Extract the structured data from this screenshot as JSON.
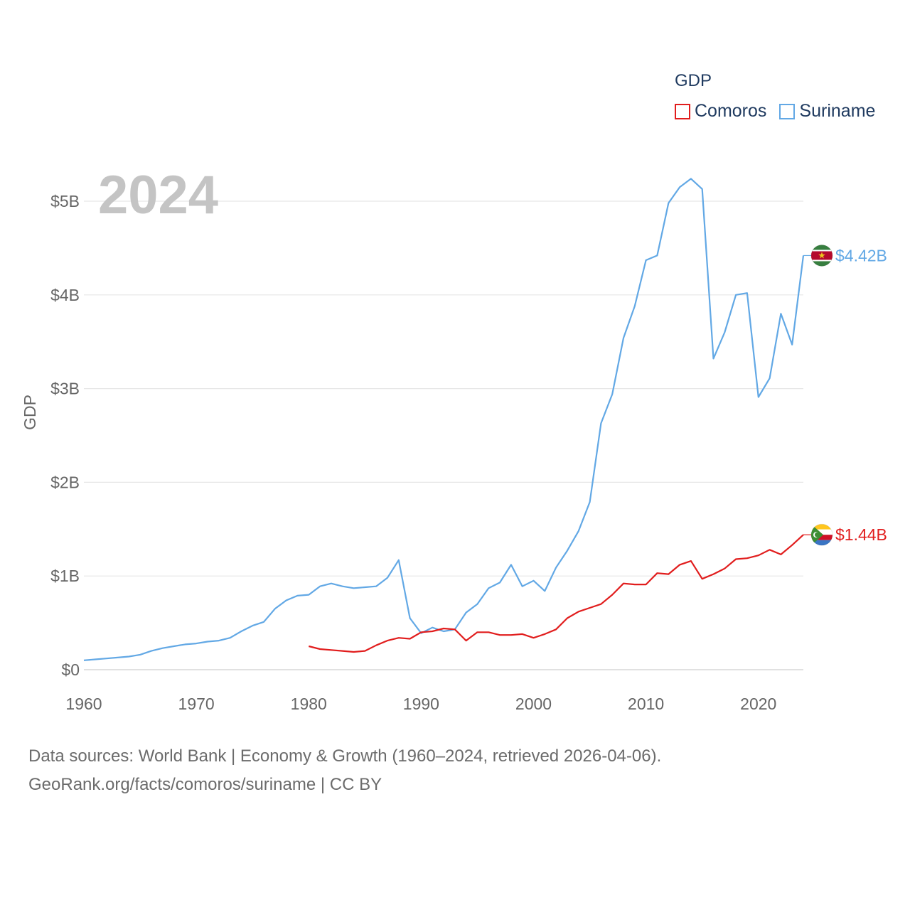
{
  "legend": {
    "title": "GDP",
    "series": [
      {
        "name": "Comoros",
        "color": "#e11d1d"
      },
      {
        "name": "Suriname",
        "color": "#62a8e5"
      }
    ]
  },
  "source": {
    "line1": "Data sources: World Bank | Economy & Growth (1960–2024, retrieved 2026-04-06).",
    "line2": "GeoRank.org/facts/comoros/suriname | CC BY"
  },
  "chart_data": {
    "type": "line",
    "year_label": "2024",
    "ylabel": "GDP",
    "xlim": [
      1960,
      2024
    ],
    "ylim": [
      0,
      5
    ],
    "x_ticks": [
      1960,
      1970,
      1980,
      1990,
      2000,
      2010,
      2020
    ],
    "y_ticks": [
      {
        "value": 0,
        "label": "$0"
      },
      {
        "value": 1,
        "label": "$1B"
      },
      {
        "value": 2,
        "label": "$2B"
      },
      {
        "value": 3,
        "label": "$3B"
      },
      {
        "value": 4,
        "label": "$4B"
      },
      {
        "value": 5,
        "label": "$5B"
      }
    ],
    "unit": "billion USD",
    "series": [
      {
        "name": "Suriname",
        "color": "#62a8e5",
        "end_label": "$4.42B",
        "x": [
          1960,
          1961,
          1962,
          1963,
          1964,
          1965,
          1966,
          1967,
          1968,
          1969,
          1970,
          1971,
          1972,
          1973,
          1974,
          1975,
          1976,
          1977,
          1978,
          1979,
          1980,
          1981,
          1982,
          1983,
          1984,
          1985,
          1986,
          1987,
          1988,
          1989,
          1990,
          1991,
          1992,
          1993,
          1994,
          1995,
          1996,
          1997,
          1998,
          1999,
          2000,
          2001,
          2002,
          2003,
          2004,
          2005,
          2006,
          2007,
          2008,
          2009,
          2010,
          2011,
          2012,
          2013,
          2014,
          2015,
          2016,
          2017,
          2018,
          2019,
          2020,
          2021,
          2022,
          2023,
          2024
        ],
        "values": [
          0.1,
          0.11,
          0.12,
          0.13,
          0.14,
          0.16,
          0.2,
          0.23,
          0.25,
          0.27,
          0.28,
          0.3,
          0.31,
          0.34,
          0.41,
          0.47,
          0.51,
          0.65,
          0.74,
          0.79,
          0.8,
          0.89,
          0.92,
          0.89,
          0.87,
          0.88,
          0.89,
          0.98,
          1.17,
          0.55,
          0.39,
          0.45,
          0.41,
          0.43,
          0.61,
          0.7,
          0.87,
          0.93,
          1.12,
          0.89,
          0.95,
          0.84,
          1.09,
          1.27,
          1.48,
          1.79,
          2.63,
          2.94,
          3.54,
          3.88,
          4.37,
          4.42,
          4.98,
          5.15,
          5.24,
          5.13,
          3.32,
          3.6,
          4.0,
          4.02,
          2.91,
          3.11,
          3.8,
          3.47,
          4.42
        ]
      },
      {
        "name": "Comoros",
        "color": "#e11d1d",
        "end_label": "$1.44B",
        "x": [
          1980,
          1981,
          1982,
          1983,
          1984,
          1985,
          1986,
          1987,
          1988,
          1989,
          1990,
          1991,
          1992,
          1993,
          1994,
          1995,
          1996,
          1997,
          1998,
          1999,
          2000,
          2001,
          2002,
          2003,
          2004,
          2005,
          2006,
          2007,
          2008,
          2009,
          2010,
          2011,
          2012,
          2013,
          2014,
          2015,
          2016,
          2017,
          2018,
          2019,
          2020,
          2021,
          2022,
          2023,
          2024
        ],
        "values": [
          0.25,
          0.22,
          0.21,
          0.2,
          0.19,
          0.2,
          0.26,
          0.31,
          0.34,
          0.33,
          0.4,
          0.41,
          0.44,
          0.43,
          0.31,
          0.4,
          0.4,
          0.37,
          0.37,
          0.38,
          0.34,
          0.38,
          0.43,
          0.55,
          0.62,
          0.66,
          0.7,
          0.8,
          0.92,
          0.91,
          0.91,
          1.03,
          1.02,
          1.12,
          1.16,
          0.97,
          1.02,
          1.08,
          1.18,
          1.19,
          1.22,
          1.28,
          1.23,
          1.33,
          1.44
        ]
      }
    ]
  }
}
